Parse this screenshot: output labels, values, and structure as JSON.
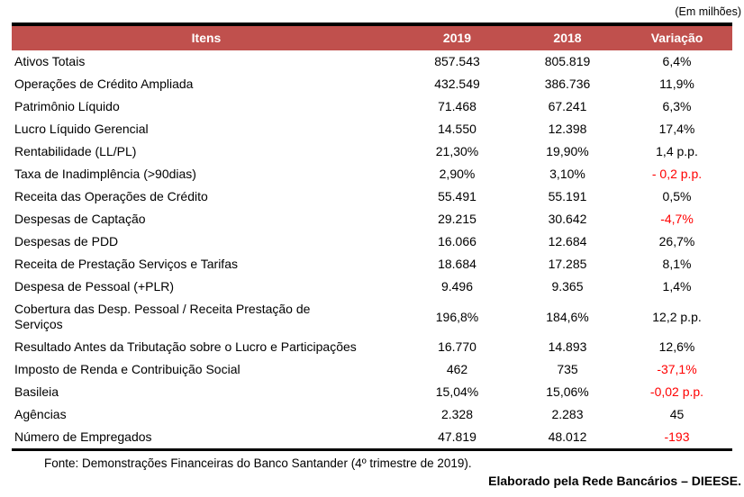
{
  "unit_note": "(Em milhões)",
  "colors": {
    "header_bg": "#c0504d",
    "header_text": "#ffffff",
    "negative_value": "#ff0000",
    "text": "#000000"
  },
  "table": {
    "headers": [
      "Itens",
      "2019",
      "2018",
      "Variação"
    ],
    "rows": [
      {
        "item": "Ativos Totais",
        "y2019": "857.543",
        "y2018": "805.819",
        "variation": "6,4%",
        "negative": false,
        "wrap": false
      },
      {
        "item": "Operações de Crédito Ampliada",
        "y2019": "432.549",
        "y2018": "386.736",
        "variation": "11,9%",
        "negative": false,
        "wrap": false
      },
      {
        "item": "Patrimônio Líquido",
        "y2019": "71.468",
        "y2018": "67.241",
        "variation": "6,3%",
        "negative": false,
        "wrap": false
      },
      {
        "item": "Lucro Líquido Gerencial",
        "y2019": "14.550",
        "y2018": "12.398",
        "variation": "17,4%",
        "negative": false,
        "wrap": false
      },
      {
        "item": "Rentabilidade (LL/PL)",
        "y2019": "21,30%",
        "y2018": "19,90%",
        "variation": "1,4 p.p.",
        "negative": false,
        "wrap": false
      },
      {
        "item": "Taxa de Inadimplência (>90dias)",
        "y2019": "2,90%",
        "y2018": "3,10%",
        "variation": "- 0,2 p.p.",
        "negative": true,
        "wrap": false
      },
      {
        "item": "Receita das Operações de Crédito",
        "y2019": "55.491",
        "y2018": "55.191",
        "variation": "0,5%",
        "negative": false,
        "wrap": false
      },
      {
        "item": "Despesas de Captação",
        "y2019": "29.215",
        "y2018": "30.642",
        "variation": "-4,7%",
        "negative": true,
        "wrap": false
      },
      {
        "item": "Despesas de PDD",
        "y2019": "16.066",
        "y2018": "12.684",
        "variation": "26,7%",
        "negative": false,
        "wrap": false
      },
      {
        "item": "Receita de Prestação Serviços e Tarifas",
        "y2019": "18.684",
        "y2018": "17.285",
        "variation": "8,1%",
        "negative": false,
        "wrap": false
      },
      {
        "item": "Despesa de Pessoal (+PLR)",
        "y2019": "9.496",
        "y2018": "9.365",
        "variation": "1,4%",
        "negative": false,
        "wrap": false
      },
      {
        "item": "Cobertura das Desp. Pessoal / Receita Prestação de Serviços",
        "y2019": "196,8%",
        "y2018": "184,6%",
        "variation": "12,2 p.p.",
        "negative": false,
        "wrap": true
      },
      {
        "item": "Resultado Antes da Tributação sobre o Lucro e Participações",
        "y2019": "16.770",
        "y2018": "14.893",
        "variation": "12,6%",
        "negative": false,
        "wrap": false
      },
      {
        "item": "Imposto de Renda e Contribuição Social",
        "y2019": "462",
        "y2018": "735",
        "variation": "-37,1%",
        "negative": true,
        "wrap": false
      },
      {
        "item": "Basileia",
        "y2019": "15,04%",
        "y2018": "15,06%",
        "variation": "-0,02 p.p.",
        "negative": true,
        "wrap": false
      },
      {
        "item": "Agências",
        "y2019": "2.328",
        "y2018": "2.283",
        "variation": "45",
        "negative": false,
        "wrap": false
      },
      {
        "item": "Número de Empregados",
        "y2019": "47.819",
        "y2018": "48.012",
        "variation": "-193",
        "negative": true,
        "wrap": false
      }
    ]
  },
  "footer": {
    "source": "Fonte: Demonstrações Financeiras do Banco Santander (4º trimestre de 2019).",
    "credit": "Elaborado pela Rede Bancários – DIEESE."
  }
}
